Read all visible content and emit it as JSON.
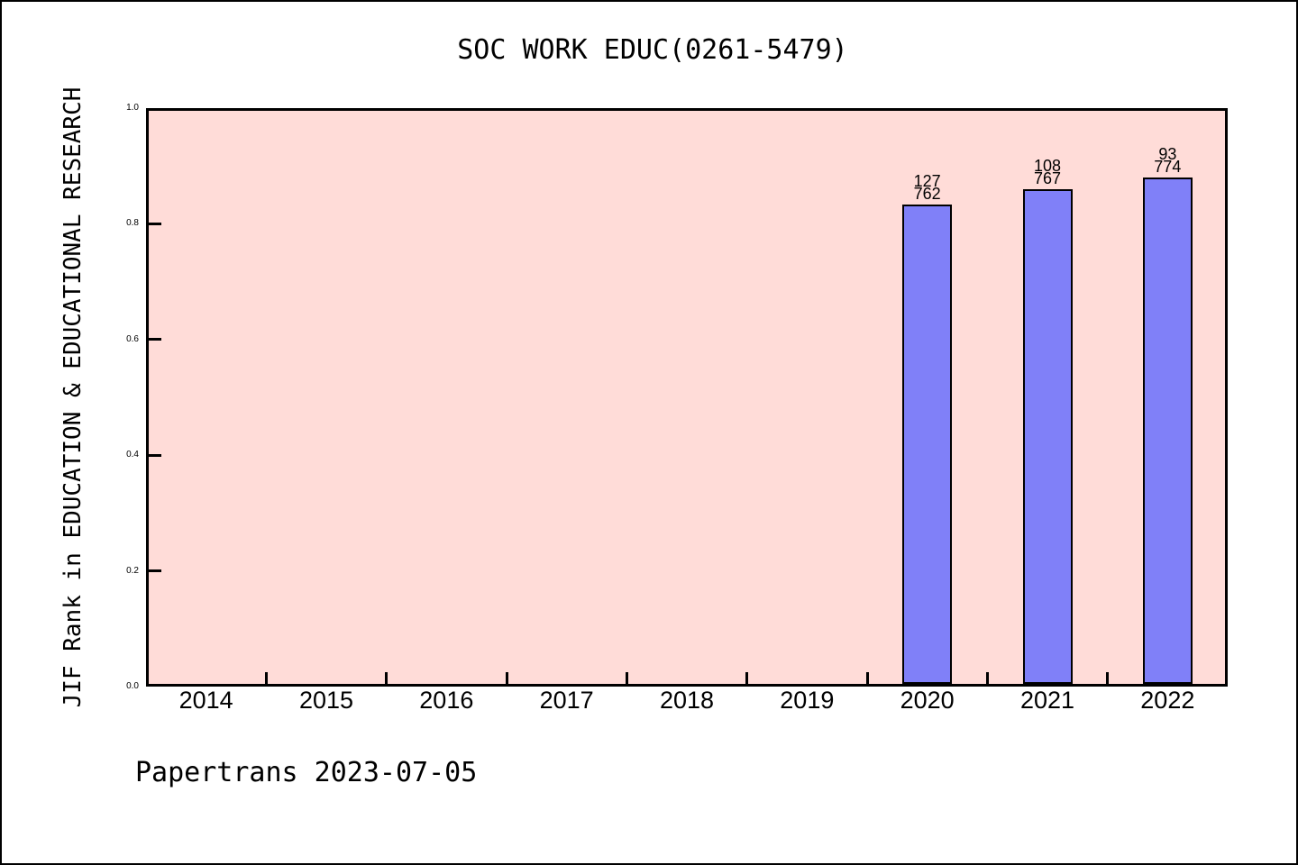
{
  "title": "SOC WORK EDUC(0261-5479)",
  "footer": "Papertrans 2023-07-05",
  "chart_data": {
    "type": "bar",
    "title": "SOC WORK EDUC(0261-5479)",
    "ylabel": "JIF Rank in EDUCATION & EDUCATIONAL RESEARCH",
    "xlabel": "",
    "categories": [
      "2014",
      "2015",
      "2016",
      "2017",
      "2018",
      "2019",
      "2020",
      "2021",
      "2022"
    ],
    "yticks": [
      "0.0",
      "0.2",
      "0.4",
      "0.6",
      "0.8",
      "1.0"
    ],
    "ylim": [
      0,
      1
    ],
    "bars": [
      {
        "category": "2020",
        "rank": "127",
        "total": "762",
        "value": 0.8333
      },
      {
        "category": "2021",
        "rank": "108",
        "total": "767",
        "value": 0.8592
      },
      {
        "category": "2022",
        "rank": "93",
        "total": "774",
        "value": 0.8798
      }
    ],
    "legend": "none",
    "grid": "off",
    "colors": {
      "bar_fill": "#8080f8",
      "bar_border": "#000000",
      "plot_bg": "#ffdcd8",
      "page_bg": "#ffffff",
      "text": "#000000"
    }
  }
}
